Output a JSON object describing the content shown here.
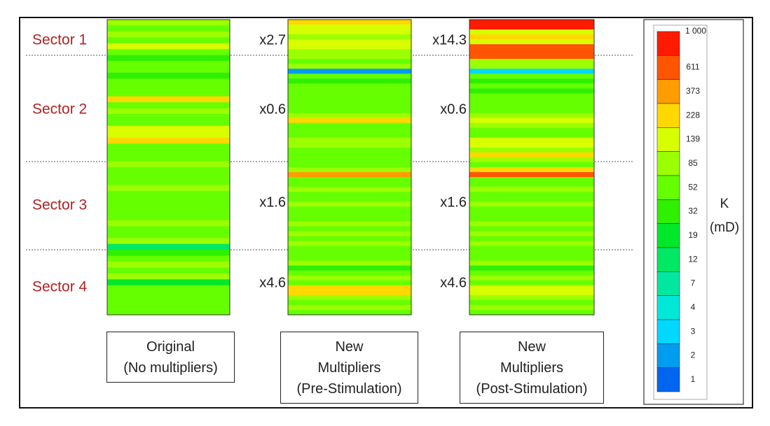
{
  "chart_data": {
    "type": "heatmap",
    "title": "",
    "colorbar": {
      "label_line1": "K",
      "label_line2": "(mD)",
      "tick_labels": [
        "1 000",
        "611",
        "373",
        "228",
        "139",
        "85",
        "52",
        "32",
        "19",
        "12",
        "7",
        "4",
        "3",
        "2",
        "1"
      ],
      "colors": [
        "#ff1a00",
        "#ff5500",
        "#ff9c00",
        "#ffd800",
        "#d8ff00",
        "#9cff00",
        "#66ff00",
        "#2ef000",
        "#00e82a",
        "#00e864",
        "#00e8a0",
        "#00e8d8",
        "#00d8ff",
        "#009cf0",
        "#0066f0"
      ]
    },
    "sectors": [
      {
        "name": "Sector 1",
        "multiplier": "x2.7",
        "post_multiplier": "x14.3"
      },
      {
        "name": "Sector 2",
        "multiplier": "x0.6",
        "post_multiplier": "x0.6"
      },
      {
        "name": "Sector 3",
        "multiplier": "x1.6",
        "post_multiplier": "x1.6"
      },
      {
        "name": "Sector 4",
        "multiplier": "x4.6",
        "post_multiplier": "x4.6"
      }
    ],
    "columns": [
      {
        "caption_lines": [
          "Original",
          "(No multipliers)"
        ],
        "layers": [
          5,
          6,
          5,
          6,
          4,
          6,
          7,
          6,
          6,
          7,
          6,
          6,
          6,
          3,
          6,
          5,
          6,
          6,
          4,
          4,
          3,
          6,
          6,
          6,
          5,
          6,
          6,
          6,
          5,
          6,
          6,
          6,
          6,
          6,
          5,
          6,
          6,
          5,
          9,
          7,
          6,
          5,
          6,
          5,
          8,
          6,
          6,
          6,
          6,
          6
        ]
      },
      {
        "caption_lines": [
          "New",
          "Multipliers",
          "(Pre-Stimulation)"
        ],
        "layers": [
          3,
          4,
          4,
          5,
          4,
          4,
          5,
          5,
          6,
          5,
          13,
          6,
          7,
          6,
          6,
          6,
          6,
          6,
          6,
          5,
          3,
          6,
          6,
          6,
          5,
          5,
          6,
          6,
          6,
          6,
          5,
          2,
          6,
          6,
          5,
          6,
          6,
          5,
          6,
          6,
          6,
          5,
          6,
          5,
          6,
          5,
          6,
          6,
          6,
          5,
          7,
          6,
          5,
          6,
          3,
          3,
          5,
          6,
          5,
          6
        ]
      },
      {
        "caption_lines": [
          "New",
          "Multipliers",
          "(Post-Stimulation)"
        ],
        "layers": [
          0,
          0,
          4,
          3,
          4,
          1,
          1,
          1,
          5,
          5,
          12,
          6,
          7,
          6,
          7,
          6,
          6,
          6,
          6,
          5,
          4,
          5,
          6,
          6,
          4,
          4,
          5,
          3,
          5,
          6,
          3,
          1,
          6,
          6,
          5,
          6,
          6,
          5,
          6,
          6,
          6,
          5,
          6,
          5,
          6,
          5,
          6,
          6,
          6,
          5,
          7,
          6,
          5,
          6,
          4,
          4,
          5,
          6,
          5,
          6
        ]
      }
    ]
  }
}
